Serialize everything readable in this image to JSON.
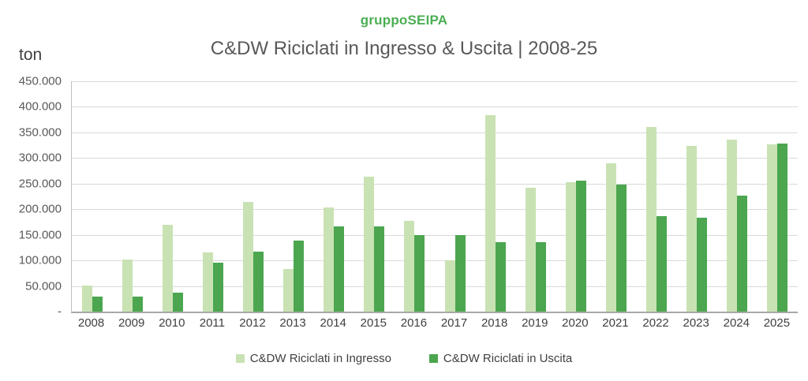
{
  "header": {
    "brand": "gruppoSEIPA",
    "title": "C&DW Riciclati in Ingresso & Uscita | 2008-25"
  },
  "colors": {
    "brand_green": "#4CAE53",
    "title_gray": "#595959",
    "axis_text": "#595959",
    "gridline": "#d9d9d9",
    "ingresso_light_green": "#c9e2b3",
    "uscita_dark_green": "#4ba64f"
  },
  "chart_data": {
    "type": "bar",
    "title": "C&DW Riciclati in Ingresso & Uscita | 2008-25",
    "subtitle": "gruppoSEIPA",
    "unit_label": "ton",
    "xlabel": "",
    "ylabel": "ton",
    "ylim": [
      0,
      450000
    ],
    "grid": true,
    "legend_position": "bottom",
    "y_ticks": [
      "450.000",
      "400.000",
      "350.000",
      "300.000",
      "250.000",
      "200.000",
      "150.000",
      "100.000",
      "50.000",
      "-"
    ],
    "categories": [
      "2008",
      "2009",
      "2010",
      "2011",
      "2012",
      "2013",
      "2014",
      "2015",
      "2016",
      "2017",
      "2018",
      "2019",
      "2020",
      "2021",
      "2022",
      "2023",
      "2024",
      "2025"
    ],
    "series": [
      {
        "name": "C&DW Riciclati in Ingresso",
        "key": "ingresso",
        "color": "#c9e2b3",
        "values": [
          51000,
          102000,
          169000,
          116000,
          215000,
          84000,
          203000,
          264000,
          178000,
          100000,
          383000,
          242000,
          253000,
          289000,
          360000,
          323000,
          336000,
          326000
        ]
      },
      {
        "name": "C&DW Riciclati in Uscita",
        "key": "uscita",
        "color": "#4ba64f",
        "values": [
          30000,
          29000,
          37000,
          96000,
          117000,
          139000,
          166000,
          166000,
          149000,
          150000,
          135000,
          135000,
          256000,
          248000,
          187000,
          183000,
          226000,
          328000
        ]
      }
    ]
  }
}
